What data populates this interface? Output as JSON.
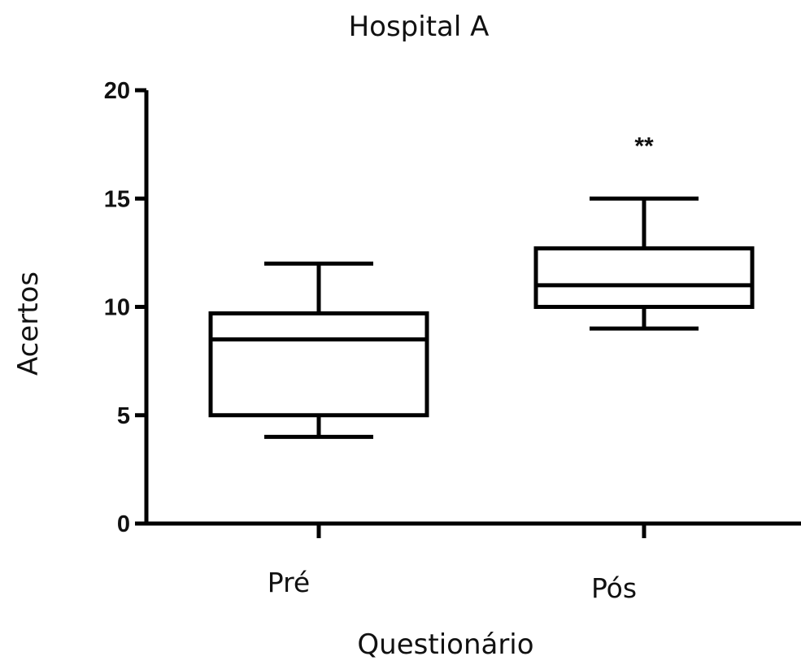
{
  "chart_data": {
    "type": "box",
    "title": "Hospital A",
    "xlabel": "Questionário",
    "ylabel": "Acertos",
    "ylim": [
      0,
      20
    ],
    "yticks": [
      "0",
      "5",
      "10",
      "15",
      "20"
    ],
    "categories": [
      "Pré",
      "Pós"
    ],
    "boxes": [
      {
        "category": "Pré",
        "min": 4,
        "q1": 5,
        "median": 8.5,
        "q3": 9.7,
        "max": 12,
        "annotation": ""
      },
      {
        "category": "Pós",
        "min": 9,
        "q1": 10,
        "median": 11,
        "q3": 12.7,
        "max": 15,
        "annotation": "**"
      }
    ],
    "grid": false,
    "legend": "none",
    "colors": {
      "stroke": "#000000",
      "fill": "#ffffff"
    }
  }
}
